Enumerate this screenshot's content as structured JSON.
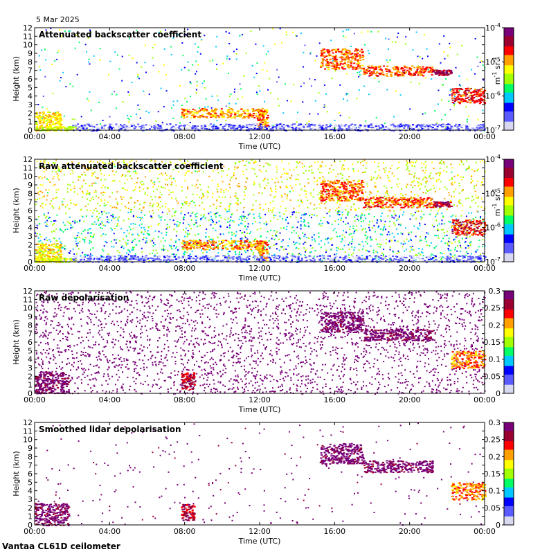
{
  "date_label": "5 Mar 2025",
  "footer_label": "Vantaa CL61D ceilometer",
  "colormap": [
    "#d8d8f0",
    "#5a5aff",
    "#0000ff",
    "#00c8ff",
    "#00ff64",
    "#a0ff00",
    "#ffff00",
    "#ffa000",
    "#ff0000",
    "#9b0030",
    "#780078"
  ],
  "chart_data": [
    {
      "type": "heatmap",
      "title": "Attenuated backscatter coefficient",
      "xlabel": "Time (UTC)",
      "ylabel": "Height (km)",
      "x_ticks": [
        "00:00",
        "04:00",
        "08:00",
        "12:00",
        "16:00",
        "20:00",
        "00:00"
      ],
      "y_ticks": [
        "0",
        "1",
        "2",
        "3",
        "4",
        "5",
        "6",
        "7",
        "8",
        "9",
        "10",
        "11",
        "12"
      ],
      "xlim_hours": [
        0,
        24
      ],
      "ylim_km": [
        0,
        12
      ],
      "colorbar": {
        "scale": "log",
        "range": [
          1e-07,
          0.0001
        ],
        "ticks": [
          {
            "base": "10",
            "exp": "-4",
            "value": 0.0001
          },
          {
            "base": "10",
            "exp": "-5",
            "value": 1e-05
          },
          {
            "base": "10",
            "exp": "-6",
            "value": 1e-06
          },
          {
            "base": "10",
            "exp": "-7",
            "value": 1e-07
          }
        ],
        "label_main": "m",
        "label_exp1": "-1",
        "label_mid": " sr",
        "label_exp2": "-1"
      }
    },
    {
      "type": "heatmap",
      "title": "Raw attenuated backscatter coefficient",
      "xlabel": "Time (UTC)",
      "ylabel": "Height (km)",
      "x_ticks": [
        "00:00",
        "04:00",
        "08:00",
        "12:00",
        "16:00",
        "20:00",
        "00:00"
      ],
      "y_ticks": [
        "0",
        "1",
        "2",
        "3",
        "4",
        "5",
        "6",
        "7",
        "8",
        "9",
        "10",
        "11",
        "12"
      ],
      "xlim_hours": [
        0,
        24
      ],
      "ylim_km": [
        0,
        12
      ],
      "colorbar": {
        "scale": "log",
        "range": [
          1e-07,
          0.0001
        ],
        "ticks": [
          {
            "base": "10",
            "exp": "-4",
            "value": 0.0001
          },
          {
            "base": "10",
            "exp": "-5",
            "value": 1e-05
          },
          {
            "base": "10",
            "exp": "-6",
            "value": 1e-06
          },
          {
            "base": "10",
            "exp": "-7",
            "value": 1e-07
          }
        ],
        "label_main": "m",
        "label_exp1": "-1",
        "label_mid": " sr",
        "label_exp2": "-1"
      }
    },
    {
      "type": "heatmap",
      "title": "Raw depolarisation",
      "xlabel": "Time (UTC)",
      "ylabel": "Height (km)",
      "x_ticks": [
        "00:00",
        "04:00",
        "08:00",
        "12:00",
        "16:00",
        "20:00",
        "00:00"
      ],
      "y_ticks": [
        "0",
        "1",
        "2",
        "3",
        "4",
        "5",
        "6",
        "7",
        "8",
        "9",
        "10",
        "11",
        "12"
      ],
      "xlim_hours": [
        0,
        24
      ],
      "ylim_km": [
        0,
        12
      ],
      "colorbar": {
        "scale": "linear",
        "range": [
          0,
          0.3
        ],
        "ticks": [
          {
            "label": "0.3",
            "value": 0.3
          },
          {
            "label": "0.25",
            "value": 0.25
          },
          {
            "label": "0.2",
            "value": 0.2
          },
          {
            "label": "0.15",
            "value": 0.15
          },
          {
            "label": "0.1",
            "value": 0.1
          },
          {
            "label": "0.05",
            "value": 0.05
          },
          {
            "label": "0",
            "value": 0
          }
        ]
      }
    },
    {
      "type": "heatmap",
      "title": "Smoothed lidar depolarisation",
      "xlabel": "Time (UTC)",
      "ylabel": "Height (km)",
      "x_ticks": [
        "00:00",
        "04:00",
        "08:00",
        "12:00",
        "16:00",
        "20:00",
        "00:00"
      ],
      "y_ticks": [
        "0",
        "1",
        "2",
        "3",
        "4",
        "5",
        "6",
        "7",
        "8",
        "9",
        "10",
        "11",
        "12"
      ],
      "xlim_hours": [
        0,
        24
      ],
      "ylim_km": [
        0,
        12
      ],
      "colorbar": {
        "scale": "linear",
        "range": [
          0,
          0.3
        ],
        "ticks": [
          {
            "label": "0.3",
            "value": 0.3
          },
          {
            "label": "0.25",
            "value": 0.25
          },
          {
            "label": "0.2",
            "value": 0.2
          },
          {
            "label": "0.15",
            "value": 0.15
          },
          {
            "label": "0.1",
            "value": 0.1
          },
          {
            "label": "0.05",
            "value": 0.05
          },
          {
            "label": "0",
            "value": 0
          }
        ]
      }
    }
  ]
}
